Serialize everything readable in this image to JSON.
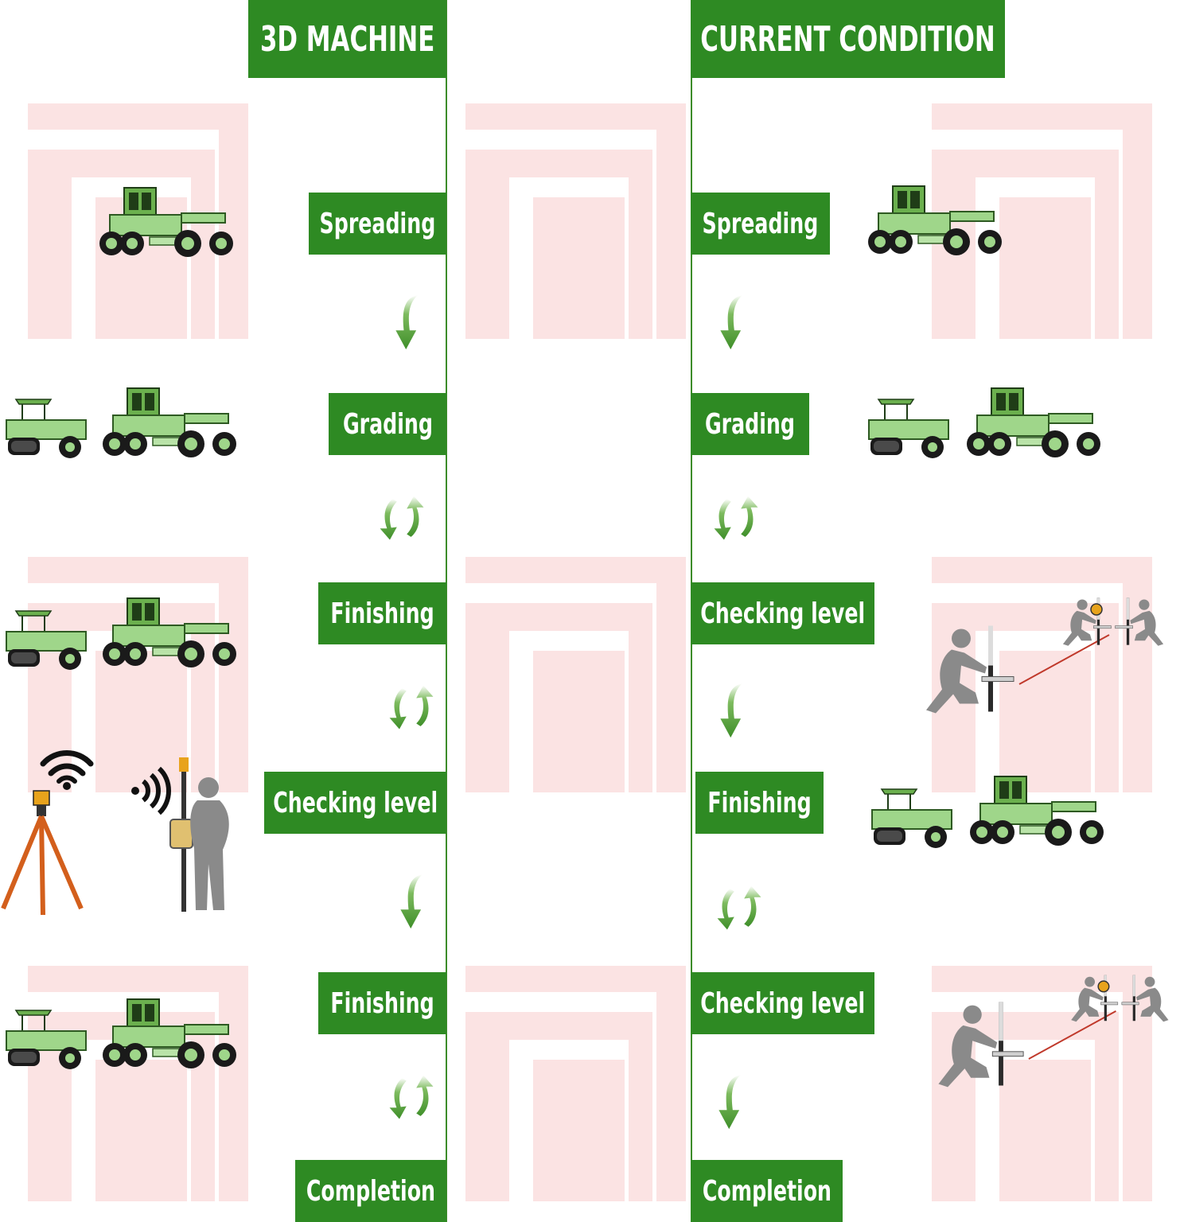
{
  "diagram": {
    "left_column": {
      "title": "3D MACHINE",
      "steps": [
        "Spreading",
        "Grading",
        "Finishing",
        "Checking level",
        "Finishing",
        "Completion"
      ]
    },
    "right_column": {
      "title": "CURRENT CONDITION",
      "steps": [
        "Spreading",
        "Grading",
        "Checking level",
        "Finishing",
        "Checking level",
        "Completion"
      ]
    },
    "arrow_types": {
      "left": [
        "down",
        "cycle",
        "cycle",
        "down",
        "cycle"
      ],
      "right": [
        "down",
        "cycle",
        "down",
        "cycle",
        "down"
      ]
    },
    "pictures": {
      "machine": "motor-grader-icon",
      "roller": "roller-compactor-icon",
      "survey": "total-station-surveyor-icon",
      "level": "level-check-workers-icon"
    },
    "colors": {
      "green": "#2e8a23",
      "arrow_green": "#4f9e3a",
      "machine_tint": "#9fd68a",
      "watermark": "#fbe3e3",
      "silhouette": "#8a8a8a"
    }
  }
}
